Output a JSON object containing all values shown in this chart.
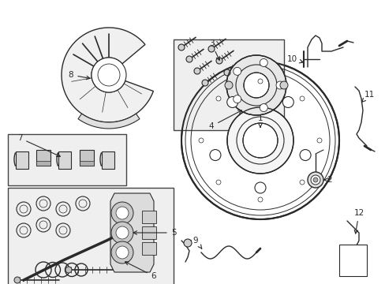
{
  "bg_color": "#ffffff",
  "fig_width": 4.89,
  "fig_height": 3.6,
  "dpi": 100,
  "line_color": "#2a2a2a",
  "box_fill": "#efefef",
  "box_line": "#444444"
}
